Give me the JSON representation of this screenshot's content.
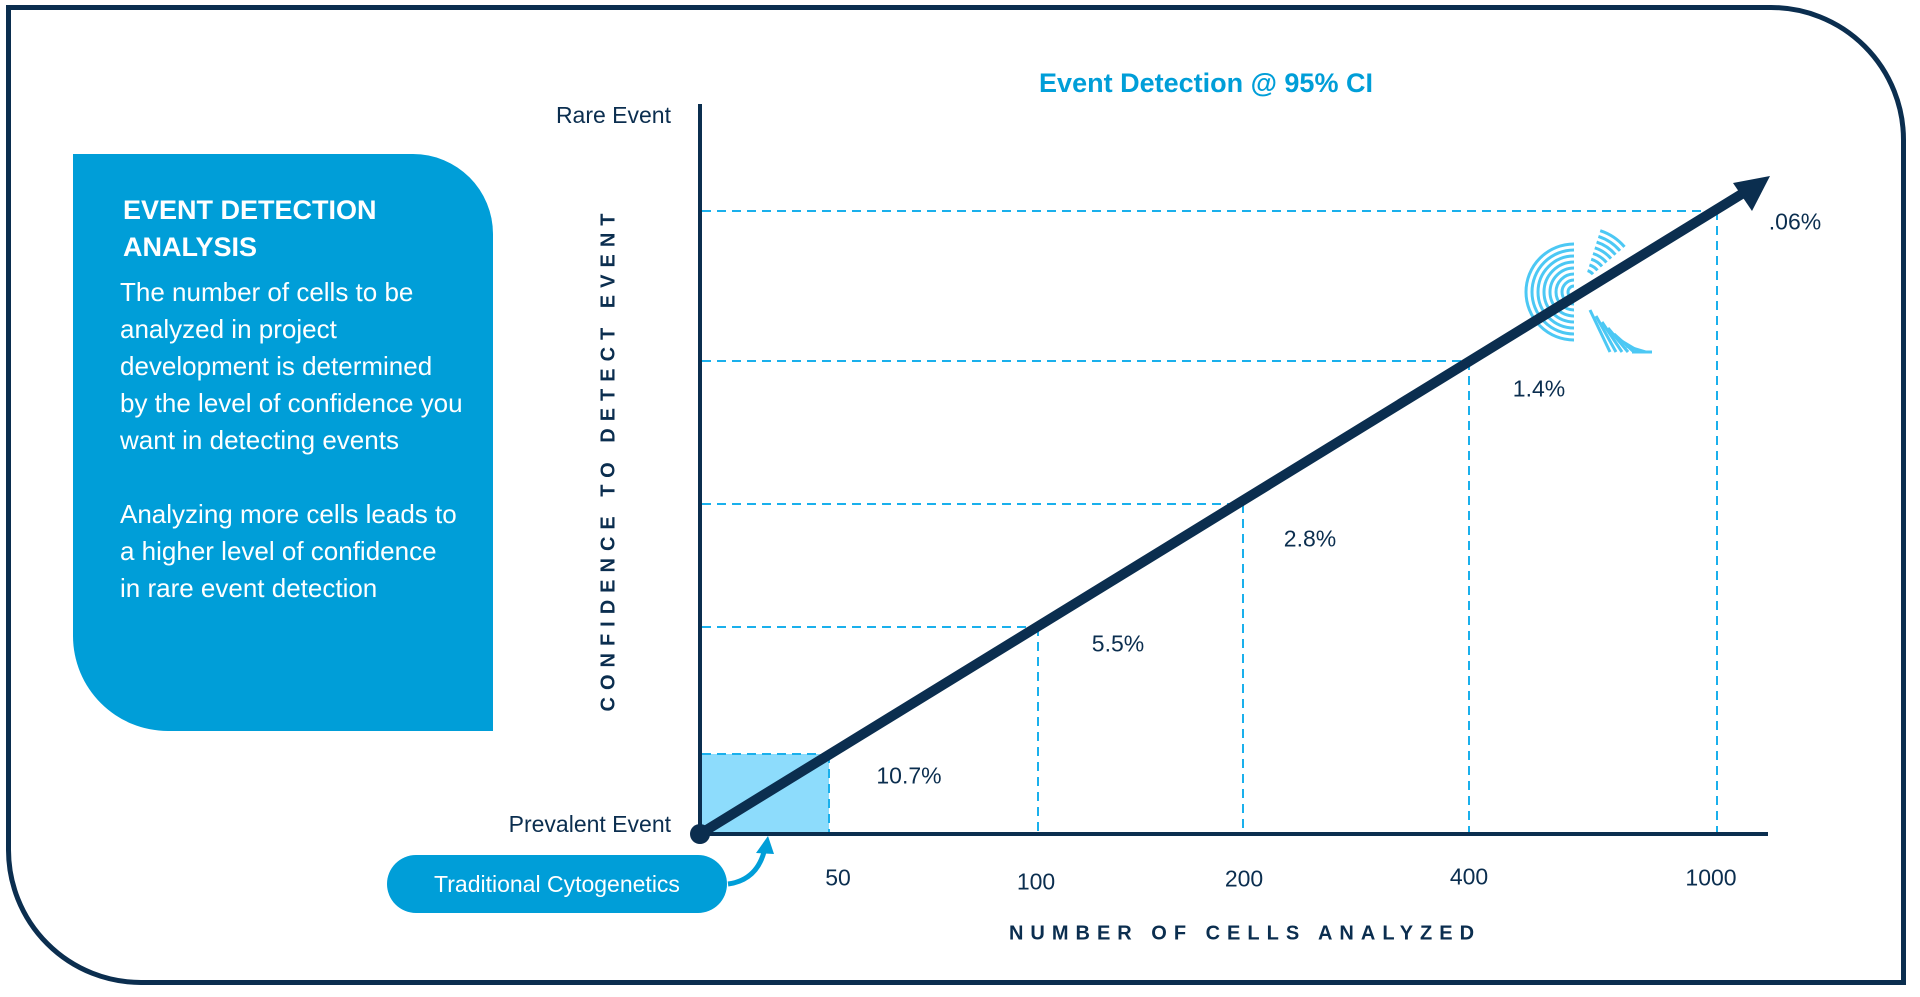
{
  "infobox": {
    "heading": "EVENT DETECTION ANALYSIS",
    "paragraph1": "The number of cells to be analyzed in project development is determined by the level of confidence you want in detecting events",
    "paragraph2": "Analyzing more cells leads to a higher level of confidence in rare event detection"
  },
  "callout": {
    "label": "Traditional Cytogenetics"
  },
  "colors": {
    "navy": "#0b2e4f",
    "accent": "#009ed8",
    "highlight": "#8ddcfc",
    "gridline": "#1ab0ec"
  },
  "logo": {
    "icon": "concentric-arcs-k-logo"
  },
  "chart_data": {
    "type": "line",
    "title": "Event Detection @ 95% CI",
    "xlabel": "NUMBER OF CELLS ANALYZED",
    "ylabel": "CONFIDENCE TO DETECT EVENT",
    "y_top_label": "Rare Event",
    "y_bottom_label": "Prevalent Event",
    "categories": [
      "50",
      "100",
      "200",
      "400",
      "1000"
    ],
    "detectable_event_rate": [
      "10.7%",
      "5.5%",
      "2.8%",
      "1.4%",
      ".06%"
    ],
    "grid": "dashed guide lines to each point",
    "highlighted_region": "50"
  }
}
